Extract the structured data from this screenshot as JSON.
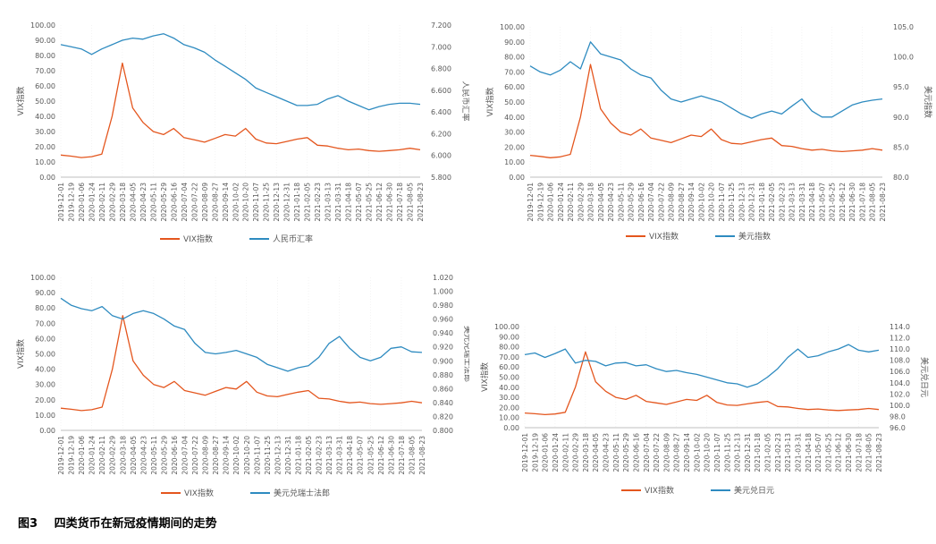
{
  "caption": {
    "fig_no": "图3",
    "text": "四类货币在新冠疫情期间的走势"
  },
  "colors": {
    "vix": "#E4561E",
    "fx": "#2E8BC0",
    "axis_text": "#595959",
    "grid": "#d9d9d9"
  },
  "chart_data": [
    {
      "type": "line",
      "xlabels": [
        "2019-12-01",
        "2019-12-19",
        "2020-01-06",
        "2020-01-24",
        "2020-02-11",
        "2020-02-29",
        "2020-03-18",
        "2020-04-05",
        "2020-04-23",
        "2020-05-11",
        "2020-05-29",
        "2020-06-16",
        "2020-07-04",
        "2020-07-22",
        "2020-08-09",
        "2020-08-27",
        "2020-09-14",
        "2020-10-02",
        "2020-10-20",
        "2020-11-07",
        "2020-11-25",
        "2020-12-13",
        "2020-12-31",
        "2021-01-18",
        "2021-02-05",
        "2021-02-23",
        "2021-03-13",
        "2021-03-31",
        "2021-04-18",
        "2021-05-07",
        "2021-05-25",
        "2021-06-12",
        "2021-06-30",
        "2021-07-18",
        "2021-08-05",
        "2021-08-23"
      ],
      "y_left": {
        "label": "VIX指数",
        "min": 0,
        "max": 100,
        "step": 10,
        "ticks": [
          "0.00",
          "10.00",
          "20.00",
          "30.00",
          "40.00",
          "50.00",
          "60.00",
          "70.00",
          "80.00",
          "90.00",
          "100.00"
        ]
      },
      "y_right": {
        "label": "人民币汇率",
        "min": 5.8,
        "max": 7.2,
        "ticks": [
          "5.800",
          "6.000",
          "6.200",
          "6.400",
          "6.600",
          "6.800",
          "7.000",
          "7.200"
        ]
      },
      "series": [
        {
          "name": "VIX指数",
          "axis": "left",
          "values": [
            14.5,
            13.8,
            12.9,
            13.5,
            15.2,
            40.0,
            75.0,
            45.5,
            36.0,
            30.0,
            28.0,
            32.0,
            26.0,
            24.5,
            23.0,
            25.5,
            28.0,
            27.0,
            32.0,
            25.0,
            22.5,
            22.0,
            23.5,
            25.0,
            26.0,
            21.0,
            20.5,
            19.0,
            18.0,
            18.5,
            17.5,
            17.0,
            17.5,
            18.0,
            19.0,
            18.0
          ]
        },
        {
          "name": "人民币汇率",
          "axis": "right",
          "values": [
            7.02,
            7.0,
            6.98,
            6.93,
            6.98,
            7.02,
            7.06,
            7.08,
            7.07,
            7.1,
            7.12,
            7.08,
            7.02,
            6.99,
            6.95,
            6.88,
            6.82,
            6.76,
            6.7,
            6.62,
            6.58,
            6.54,
            6.5,
            6.46,
            6.46,
            6.47,
            6.52,
            6.55,
            6.5,
            6.46,
            6.42,
            6.45,
            6.47,
            6.48,
            6.48,
            6.47
          ]
        }
      ]
    },
    {
      "type": "line",
      "xlabels": [
        "2019-12-01",
        "2019-12-19",
        "2020-01-06",
        "2020-01-24",
        "2020-02-11",
        "2020-02-29",
        "2020-03-18",
        "2020-04-05",
        "2020-04-23",
        "2020-05-11",
        "2020-05-29",
        "2020-06-16",
        "2020-07-04",
        "2020-07-22",
        "2020-08-09",
        "2020-08-27",
        "2020-09-14",
        "2020-10-02",
        "2020-10-20",
        "2020-11-07",
        "2020-11-25",
        "2020-12-13",
        "2020-12-31",
        "2021-01-18",
        "2021-02-05",
        "2021-02-23",
        "2021-03-13",
        "2021-03-31",
        "2021-04-18",
        "2021-05-07",
        "2021-05-25",
        "2021-06-12",
        "2021-06-30",
        "2021-07-18",
        "2021-08-05",
        "2021-08-23"
      ],
      "y_left": {
        "label": "VIX指数",
        "min": 0,
        "max": 100,
        "ticks": [
          "0.00",
          "10.00",
          "20.00",
          "30.00",
          "40.00",
          "50.00",
          "60.00",
          "70.00",
          "80.00",
          "90.00",
          "100.00"
        ]
      },
      "y_right": {
        "label": "美元指数",
        "min": 80,
        "max": 105,
        "ticks": [
          "80.0",
          "85.0",
          "90.0",
          "95.0",
          "100.0",
          "105.0"
        ]
      },
      "series": [
        {
          "name": "VIX指数",
          "axis": "left",
          "values": [
            14.5,
            13.8,
            12.9,
            13.5,
            15.2,
            40.0,
            75.0,
            45.5,
            36.0,
            30.0,
            28.0,
            32.0,
            26.0,
            24.5,
            23.0,
            25.5,
            28.0,
            27.0,
            32.0,
            25.0,
            22.5,
            22.0,
            23.5,
            25.0,
            26.0,
            21.0,
            20.5,
            19.0,
            18.0,
            18.5,
            17.5,
            17.0,
            17.5,
            18.0,
            19.0,
            18.0
          ]
        },
        {
          "name": "美元指数",
          "axis": "right",
          "values": [
            98.5,
            97.5,
            97.0,
            97.8,
            99.2,
            98.0,
            102.5,
            100.5,
            100.0,
            99.5,
            98.0,
            97.0,
            96.5,
            94.5,
            93.0,
            92.5,
            93.0,
            93.5,
            93.0,
            92.5,
            91.5,
            90.5,
            89.8,
            90.5,
            91.0,
            90.5,
            91.8,
            93.0,
            91.0,
            90.0,
            90.0,
            91.0,
            92.0,
            92.5,
            92.8,
            93.0
          ]
        }
      ]
    },
    {
      "type": "line",
      "xlabels": [
        "2019-12-01",
        "2019-12-19",
        "2020-01-06",
        "2020-01-24",
        "2020-02-11",
        "2020-02-29",
        "2020-03-18",
        "2020-04-05",
        "2020-04-23",
        "2020-05-11",
        "2020-05-29",
        "2020-06-16",
        "2020-07-04",
        "2020-07-22",
        "2020-08-09",
        "2020-08-27",
        "2020-09-14",
        "2020-10-02",
        "2020-10-20",
        "2020-11-07",
        "2020-11-25",
        "2020-12-13",
        "2020-12-31",
        "2021-01-18",
        "2021-02-05",
        "2021-02-23",
        "2021-03-13",
        "2021-03-31",
        "2021-04-18",
        "2021-05-07",
        "2021-05-25",
        "2021-06-12",
        "2021-06-30",
        "2021-07-18",
        "2021-08-05",
        "2021-08-23"
      ],
      "y_left": {
        "label": "VIX指数",
        "min": 0,
        "max": 100,
        "ticks": [
          "0.00",
          "10.00",
          "20.00",
          "30.00",
          "40.00",
          "50.00",
          "60.00",
          "70.00",
          "80.00",
          "90.00",
          "100.00"
        ]
      },
      "y_right": {
        "label": "美元兑瑞士法郎",
        "min": 0.8,
        "max": 1.02,
        "ticks": [
          "0.800",
          "0.820",
          "0.840",
          "0.860",
          "0.880",
          "0.900",
          "0.920",
          "0.940",
          "0.960",
          "0.980",
          "1.000",
          "1.020"
        ]
      },
      "series": [
        {
          "name": "VIX指数",
          "axis": "left",
          "values": [
            14.5,
            13.8,
            12.9,
            13.5,
            15.2,
            40.0,
            75.0,
            45.5,
            36.0,
            30.0,
            28.0,
            32.0,
            26.0,
            24.5,
            23.0,
            25.5,
            28.0,
            27.0,
            32.0,
            25.0,
            22.5,
            22.0,
            23.5,
            25.0,
            26.0,
            21.0,
            20.5,
            19.0,
            18.0,
            18.5,
            17.5,
            17.0,
            17.5,
            18.0,
            19.0,
            18.0
          ]
        },
        {
          "name": "美元兑瑞士法郎",
          "axis": "right",
          "values": [
            0.99,
            0.98,
            0.975,
            0.972,
            0.978,
            0.965,
            0.96,
            0.968,
            0.972,
            0.968,
            0.96,
            0.95,
            0.945,
            0.925,
            0.912,
            0.91,
            0.912,
            0.915,
            0.91,
            0.905,
            0.895,
            0.89,
            0.885,
            0.89,
            0.893,
            0.905,
            0.925,
            0.935,
            0.918,
            0.905,
            0.9,
            0.905,
            0.918,
            0.92,
            0.913,
            0.912
          ]
        }
      ]
    },
    {
      "type": "line",
      "xlabels": [
        "2019-12-01",
        "2019-12-19",
        "2020-01-06",
        "2020-01-24",
        "2020-02-11",
        "2020-02-29",
        "2020-03-18",
        "2020-04-05",
        "2020-04-23",
        "2020-05-11",
        "2020-05-29",
        "2020-06-16",
        "2020-07-04",
        "2020-07-22",
        "2020-08-09",
        "2020-08-27",
        "2020-09-14",
        "2020-10-02",
        "2020-10-20",
        "2020-11-07",
        "2020-11-25",
        "2020-12-13",
        "2020-12-31",
        "2021-01-18",
        "2021-02-05",
        "2021-02-23",
        "2021-03-13",
        "2021-03-31",
        "2021-04-18",
        "2021-05-07",
        "2021-05-25",
        "2021-06-12",
        "2021-06-30",
        "2021-07-18",
        "2021-08-05",
        "2021-08-23"
      ],
      "y_left": {
        "label": "VIX指数",
        "min": 0,
        "max": 100,
        "ticks": [
          "0.00",
          "10.00",
          "20.00",
          "30.00",
          "40.00",
          "50.00",
          "60.00",
          "70.00",
          "80.00",
          "90.00",
          "100.00"
        ]
      },
      "y_right": {
        "label": "美元兑日元",
        "min": 96,
        "max": 114,
        "ticks": [
          "96.0",
          "98.0",
          "100.0",
          "102.0",
          "104.0",
          "106.0",
          "108.0",
          "110.0",
          "112.0",
          "114.0"
        ]
      },
      "series": [
        {
          "name": "VIX指数",
          "axis": "left",
          "values": [
            14.5,
            13.8,
            12.9,
            13.5,
            15.2,
            40.0,
            75.0,
            45.5,
            36.0,
            30.0,
            28.0,
            32.0,
            26.0,
            24.5,
            23.0,
            25.5,
            28.0,
            27.0,
            32.0,
            25.0,
            22.5,
            22.0,
            23.5,
            25.0,
            26.0,
            21.0,
            20.5,
            19.0,
            18.0,
            18.5,
            17.5,
            17.0,
            17.5,
            18.0,
            19.0,
            18.0
          ]
        },
        {
          "name": "美元兑日元",
          "axis": "right",
          "values": [
            109.0,
            109.3,
            108.5,
            109.2,
            110.0,
            107.5,
            108.0,
            107.8,
            107.0,
            107.5,
            107.6,
            107.0,
            107.2,
            106.5,
            106.0,
            106.2,
            105.8,
            105.5,
            105.0,
            104.5,
            104.0,
            103.8,
            103.2,
            103.8,
            105.0,
            106.5,
            108.5,
            110.0,
            108.5,
            108.8,
            109.5,
            110.0,
            110.8,
            109.8,
            109.5,
            109.8
          ]
        }
      ]
    }
  ]
}
